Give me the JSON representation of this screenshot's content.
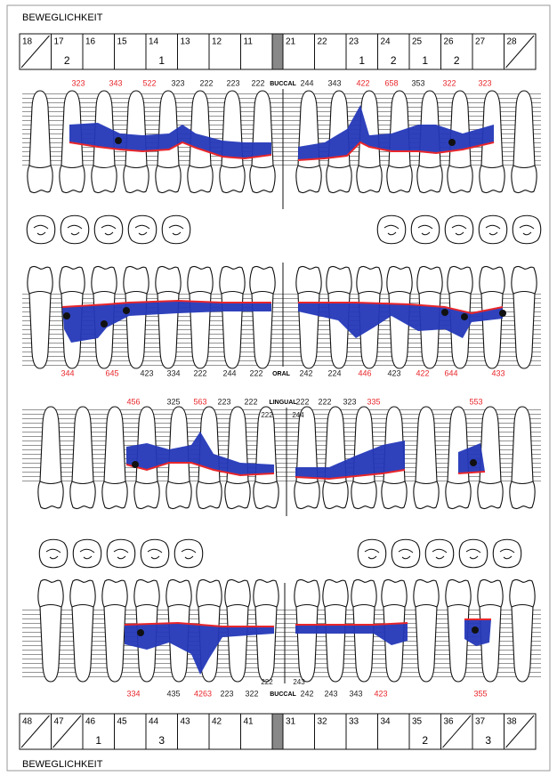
{
  "header": {
    "title": "BEWEGLICHKEIT"
  },
  "footer": {
    "title": "BEWEGLICHKEIT"
  },
  "upper_mobility": [
    {
      "tooth": 18,
      "missing": true
    },
    {
      "tooth": 17,
      "mobility": 2
    },
    {
      "tooth": 16
    },
    {
      "tooth": 15
    },
    {
      "tooth": 14,
      "mobility": 1
    },
    {
      "tooth": 13
    },
    {
      "tooth": 12
    },
    {
      "tooth": 11
    },
    {
      "tooth": 21
    },
    {
      "tooth": 22
    },
    {
      "tooth": 23,
      "mobility": 1
    },
    {
      "tooth": 24,
      "mobility": 2
    },
    {
      "tooth": 25,
      "mobility": 1
    },
    {
      "tooth": 26,
      "mobility": 2
    },
    {
      "tooth": 27
    },
    {
      "tooth": 28,
      "missing": true
    }
  ],
  "lower_mobility": [
    {
      "tooth": 48,
      "missing": true
    },
    {
      "tooth": 47,
      "missing": true
    },
    {
      "tooth": 46,
      "mobility": 1
    },
    {
      "tooth": 45
    },
    {
      "tooth": 44,
      "mobility": 3
    },
    {
      "tooth": 43
    },
    {
      "tooth": 42
    },
    {
      "tooth": 41
    },
    {
      "tooth": 31
    },
    {
      "tooth": 32
    },
    {
      "tooth": 33
    },
    {
      "tooth": 34
    },
    {
      "tooth": 35,
      "mobility": 2
    },
    {
      "tooth": 36,
      "missing": true
    },
    {
      "tooth": 37,
      "mobility": 3
    },
    {
      "tooth": 38,
      "missing": true
    }
  ],
  "upper_buccal": {
    "label": "BUCCAL",
    "left": [
      {
        "text": "323",
        "color": "#e8262b"
      },
      {
        "text": "343",
        "color": "#e8262b"
      },
      {
        "text": "522",
        "color": "#e8262b"
      },
      {
        "text": "323",
        "color": "#222222"
      },
      {
        "text": "222",
        "color": "#222222"
      },
      {
        "text": "223",
        "color": "#222222"
      },
      {
        "text": "222",
        "color": "#222222"
      }
    ],
    "right": [
      {
        "text": "244",
        "color": "#222222"
      },
      {
        "text": "343",
        "color": "#222222"
      },
      {
        "text": "422",
        "color": "#e8262b"
      },
      {
        "text": "658",
        "color": "#e8262b"
      },
      {
        "text": "353",
        "color": "#222222"
      },
      {
        "text": "322",
        "color": "#e8262b"
      },
      {
        "text": "323",
        "color": "#e8262b"
      }
    ]
  },
  "upper_oral": {
    "label": "ORAL",
    "left": [
      {
        "text": "344",
        "color": "#e8262b"
      },
      {
        "text": "645",
        "color": "#e8262b"
      },
      {
        "text": "423",
        "color": "#222222"
      },
      {
        "text": "334",
        "color": "#222222"
      },
      {
        "text": "222",
        "color": "#222222"
      },
      {
        "text": "244",
        "color": "#222222"
      },
      {
        "text": "222",
        "color": "#222222"
      }
    ],
    "right": [
      {
        "text": "242",
        "color": "#222222"
      },
      {
        "text": "224",
        "color": "#222222"
      },
      {
        "text": "446",
        "color": "#e8262b"
      },
      {
        "text": "423",
        "color": "#222222"
      },
      {
        "text": "422",
        "color": "#e8262b"
      },
      {
        "text": "644",
        "color": "#e8262b"
      },
      {
        "text": "433",
        "color": "#e8262b"
      }
    ]
  },
  "lower_lingual": {
    "label": "LINGUAL",
    "left": [
      {
        "text": "456",
        "color": "#e8262b"
      },
      {
        "text": "325",
        "color": "#222222"
      },
      {
        "text": "563",
        "color": "#e8262b"
      },
      {
        "text": "223",
        "color": "#222222"
      },
      {
        "text": "222",
        "color": "#222222"
      }
    ],
    "right": [
      {
        "text": "222",
        "color": "#222222"
      },
      {
        "text": "222",
        "color": "#222222"
      },
      {
        "text": "323",
        "color": "#222222"
      },
      {
        "text": "335",
        "color": "#e8262b"
      },
      {
        "text": "553",
        "color": "#e8262b"
      }
    ],
    "extra": [
      {
        "text": "222",
        "color": "#222222"
      },
      {
        "text": "244",
        "color": "#222222"
      }
    ]
  },
  "lower_buccal": {
    "label": "BUCCAL",
    "left": [
      {
        "text": "334",
        "color": "#e8262b"
      },
      {
        "text": "435",
        "color": "#222222"
      },
      {
        "text": "4263",
        "color": "#e8262b"
      },
      {
        "text": "223",
        "color": "#222222"
      },
      {
        "text": "322",
        "color": "#222222"
      }
    ],
    "right": [
      {
        "text": "242",
        "color": "#222222"
      },
      {
        "text": "243",
        "color": "#222222"
      },
      {
        "text": "343",
        "color": "#222222"
      },
      {
        "text": "423",
        "color": "#e8262b"
      },
      {
        "text": "355",
        "color": "#e8262b"
      }
    ],
    "extra": [
      {
        "text": "222",
        "color": "#222222"
      },
      {
        "text": "243",
        "color": "#222222"
      }
    ]
  }
}
